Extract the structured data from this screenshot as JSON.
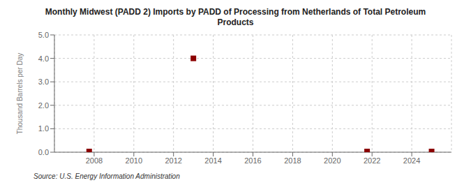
{
  "chart_data": {
    "type": "scatter",
    "title": "Monthly Midwest (PADD 2) Imports by PADD of Processing from Netherlands of Total Petroleum\nProducts",
    "y_label": "Thousand Barrels per Day",
    "source": "Source: U.S. Energy Information Administration",
    "x": [
      2007.75,
      2013.0,
      2021.75,
      2025.0
    ],
    "values": [
      0.03,
      4.0,
      0.03,
      0.03
    ],
    "color": "#8b0000",
    "marker": "square",
    "xlim": [
      2006.0,
      2026.0
    ],
    "ylim": [
      0.0,
      5.0
    ],
    "xticks": [
      2008,
      2010,
      2012,
      2014,
      2016,
      2018,
      2020,
      2022,
      2024
    ],
    "yticks": [
      {
        "value": 0.0,
        "label": "0.0"
      },
      {
        "value": 1.0,
        "label": "1.0"
      },
      {
        "value": 2.0,
        "label": "2.0"
      },
      {
        "value": 3.0,
        "label": "3.0"
      },
      {
        "value": 4.0,
        "label": "4.0"
      },
      {
        "value": 5.0,
        "label": "5.0"
      }
    ],
    "grid": true
  }
}
